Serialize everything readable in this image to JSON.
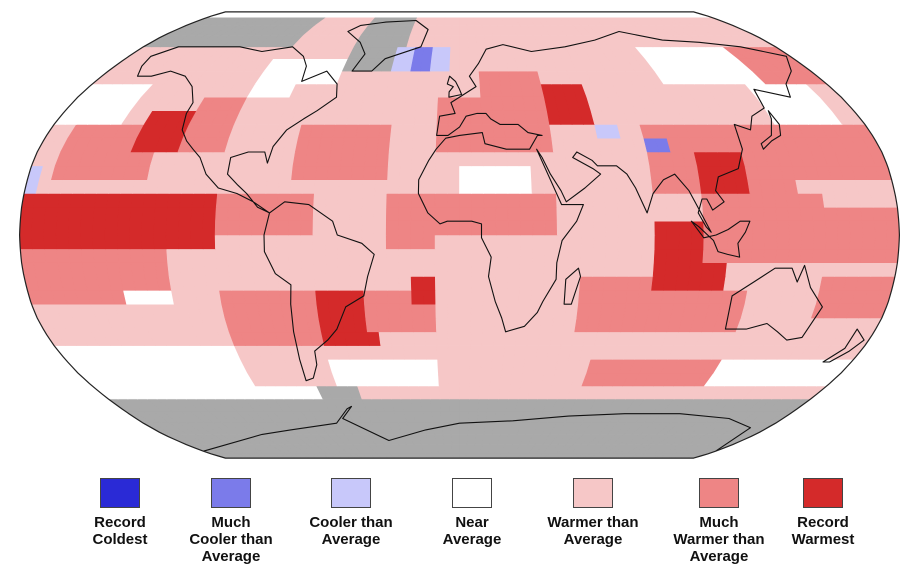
{
  "map": {
    "projection": "robinson",
    "grid_resolution_deg": 5,
    "no_data_color": "#a9a9a9",
    "land_outline_color": "#111111"
  },
  "legend": {
    "items": [
      {
        "key": "record_coldest",
        "label": "Record\nColdest",
        "color": "#2a2ad6"
      },
      {
        "key": "much_cooler",
        "label": "Much\nCooler than\nAverage",
        "color": "#7b7bea"
      },
      {
        "key": "cooler",
        "label": "Cooler than\nAverage",
        "color": "#c8c8fa"
      },
      {
        "key": "near",
        "label": "Near\nAverage",
        "color": "#ffffff"
      },
      {
        "key": "warmer",
        "label": "Warmer than\nAverage",
        "color": "#f6c7c7"
      },
      {
        "key": "much_warmer",
        "label": "Much\nWarmer than\nAverage",
        "color": "#ee8585"
      },
      {
        "key": "record_warmest",
        "label": "Record\nWarmest",
        "color": "#d42a2a"
      }
    ]
  }
}
